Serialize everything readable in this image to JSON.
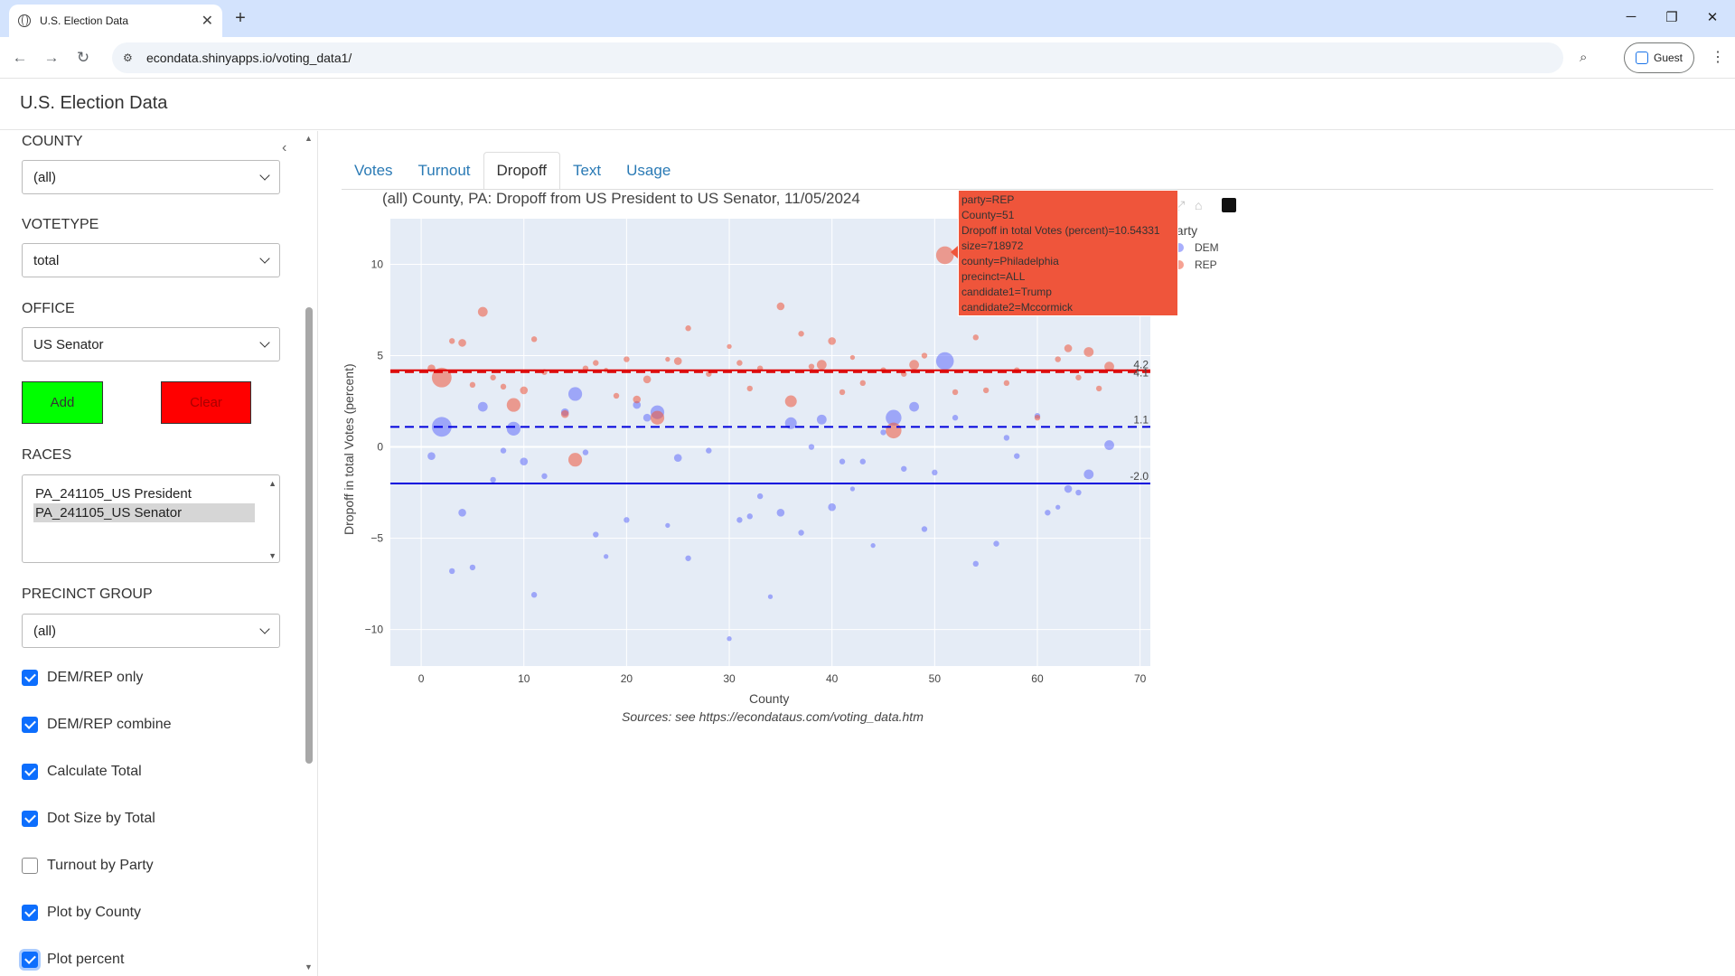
{
  "browser": {
    "tab_title": "U.S. Election Data",
    "url": "econdata.shinyapps.io/voting_data1/",
    "profile_label": "Guest"
  },
  "app": {
    "title": "U.S. Election Data"
  },
  "sidebar": {
    "county_label": "COUNTY",
    "county_value": "(all)",
    "votetype_label": "VOTETYPE",
    "votetype_value": "total",
    "office_label": "OFFICE",
    "office_value": "US Senator",
    "add_label": "Add",
    "clear_label": "Clear",
    "races_label": "RACES",
    "races": [
      "PA_241105_US President",
      "PA_241105_US Senator"
    ],
    "precinct_label": "PRECINCT GROUP",
    "precinct_value": "(all)",
    "checkboxes": [
      {
        "label": "DEM/REP only",
        "checked": true
      },
      {
        "label": "DEM/REP combine",
        "checked": true
      },
      {
        "label": "Calculate Total",
        "checked": true
      },
      {
        "label": "Dot Size by Total",
        "checked": true
      },
      {
        "label": "Turnout by Party",
        "checked": false
      },
      {
        "label": "Plot by County",
        "checked": true
      },
      {
        "label": "Plot percent",
        "checked": true
      }
    ]
  },
  "main": {
    "tabs": [
      "Votes",
      "Turnout",
      "Dropoff",
      "Text",
      "Usage"
    ],
    "active_tab": "Dropoff"
  },
  "colors": {
    "dem": "#636efa",
    "rep": "#ef553b",
    "add": "#00ff00",
    "clear": "#ff0000"
  },
  "chart_data": {
    "type": "scatter",
    "title": "(all) County, PA: Dropoff from US President to US Senator, 11/05/2024",
    "xlabel": "County",
    "ylabel": "Dropoff in total Votes (percent)",
    "source": "Sources: see https://econdataus.com/voting_data.htm",
    "xlim": [
      -3,
      71
    ],
    "ylim": [
      -12,
      12.5
    ],
    "xticks": [
      0,
      10,
      20,
      30,
      40,
      50,
      60,
      70
    ],
    "yticks": [
      -10,
      -5,
      0,
      5,
      10
    ],
    "legend_title": "party",
    "legend_position": "top-right",
    "series": [
      {
        "name": "DEM",
        "color": "#636efa",
        "points": [
          [
            1,
            -0.5,
            3
          ],
          [
            2,
            1.1,
            9
          ],
          [
            3,
            -6.8,
            2
          ],
          [
            4,
            -3.6,
            3
          ],
          [
            5,
            -6.6,
            2
          ],
          [
            6,
            2.2,
            4
          ],
          [
            7,
            -1.8,
            2
          ],
          [
            8,
            -0.2,
            2
          ],
          [
            9,
            1,
            6
          ],
          [
            10,
            -0.8,
            3
          ],
          [
            11,
            -8.1,
            2
          ],
          [
            12,
            -1.6,
            2
          ],
          [
            14,
            1.9,
            3
          ],
          [
            15,
            2.9,
            6
          ],
          [
            16,
            -0.3,
            2
          ],
          [
            17,
            -4.8,
            2
          ],
          [
            18,
            -6,
            1.5
          ],
          [
            20,
            -4,
            2
          ],
          [
            21,
            2.3,
            3
          ],
          [
            22,
            1.6,
            3
          ],
          [
            23,
            1.9,
            6
          ],
          [
            24,
            -4.3,
            1.5
          ],
          [
            25,
            -0.6,
            3
          ],
          [
            26,
            -6.1,
            2
          ],
          [
            28,
            -0.2,
            2
          ],
          [
            30,
            -10.5,
            1.5
          ],
          [
            31,
            -4,
            2
          ],
          [
            32,
            -3.8,
            2
          ],
          [
            33,
            -2.7,
            2
          ],
          [
            34,
            -8.2,
            1.5
          ],
          [
            35,
            -3.6,
            3
          ],
          [
            36,
            1.3,
            5
          ],
          [
            37,
            -4.7,
            2
          ],
          [
            38,
            0,
            2
          ],
          [
            39,
            1.5,
            4
          ],
          [
            40,
            -3.3,
            3
          ],
          [
            41,
            -0.8,
            2
          ],
          [
            42,
            -2.3,
            1.5
          ],
          [
            43,
            -0.8,
            2
          ],
          [
            44,
            -5.4,
            1.5
          ],
          [
            45,
            0.8,
            2
          ],
          [
            46,
            1.6,
            7
          ],
          [
            47,
            -1.2,
            2
          ],
          [
            48,
            2.2,
            4
          ],
          [
            49,
            -4.5,
            2
          ],
          [
            50,
            -1.4,
            2
          ],
          [
            51,
            4.7,
            8
          ],
          [
            52,
            1.6,
            2
          ],
          [
            54,
            -6.4,
            2
          ],
          [
            56,
            -5.3,
            2
          ],
          [
            57,
            0.5,
            2
          ],
          [
            58,
            -0.5,
            2
          ],
          [
            60,
            1.7,
            2
          ],
          [
            61,
            -3.6,
            2
          ],
          [
            62,
            -3.3,
            1.5
          ],
          [
            63,
            -2.3,
            3
          ],
          [
            64,
            -2.5,
            2
          ],
          [
            65,
            -1.5,
            4
          ],
          [
            67,
            0.1,
            4
          ]
        ]
      },
      {
        "name": "REP",
        "color": "#ef553b",
        "points": [
          [
            1,
            4.3,
            3
          ],
          [
            2,
            3.8,
            9
          ],
          [
            3,
            5.8,
            2
          ],
          [
            4,
            5.7,
            3
          ],
          [
            5,
            3.4,
            2
          ],
          [
            6,
            7.4,
            4
          ],
          [
            7,
            3.8,
            2
          ],
          [
            8,
            3.3,
            2
          ],
          [
            9,
            2.3,
            6
          ],
          [
            10,
            3.1,
            3
          ],
          [
            11,
            5.9,
            2
          ],
          [
            12,
            4.1,
            2
          ],
          [
            14,
            1.8,
            3
          ],
          [
            15,
            -0.7,
            6
          ],
          [
            16,
            4.3,
            2
          ],
          [
            17,
            4.6,
            2
          ],
          [
            18,
            4.2,
            1.5
          ],
          [
            19,
            2.8,
            2
          ],
          [
            20,
            4.8,
            2
          ],
          [
            21,
            2.6,
            3
          ],
          [
            22,
            3.7,
            3
          ],
          [
            23,
            1.6,
            6
          ],
          [
            24,
            4.8,
            1.5
          ],
          [
            25,
            4.7,
            3
          ],
          [
            26,
            6.5,
            2
          ],
          [
            28,
            4,
            2
          ],
          [
            30,
            5.5,
            1.5
          ],
          [
            31,
            4.6,
            2
          ],
          [
            32,
            3.2,
            2
          ],
          [
            33,
            4.3,
            2
          ],
          [
            35,
            7.7,
            3
          ],
          [
            36,
            2.5,
            5
          ],
          [
            37,
            6.2,
            2
          ],
          [
            38,
            4.4,
            2
          ],
          [
            39,
            4.5,
            4
          ],
          [
            40,
            5.8,
            3
          ],
          [
            41,
            3,
            2
          ],
          [
            42,
            4.9,
            1.5
          ],
          [
            43,
            3.5,
            2
          ],
          [
            45,
            4.2,
            2
          ],
          [
            46,
            0.9,
            7
          ],
          [
            47,
            4,
            2
          ],
          [
            48,
            4.5,
            4
          ],
          [
            49,
            5,
            2
          ],
          [
            51,
            10.5,
            8
          ],
          [
            52,
            3,
            2
          ],
          [
            54,
            6,
            2
          ],
          [
            55,
            3.1,
            2
          ],
          [
            57,
            3.5,
            2
          ],
          [
            58,
            4.2,
            2
          ],
          [
            60,
            1.6,
            2
          ],
          [
            62,
            4.8,
            2
          ],
          [
            63,
            5.4,
            3
          ],
          [
            64,
            3.8,
            2
          ],
          [
            65,
            5.2,
            4
          ],
          [
            66,
            3.2,
            2
          ],
          [
            67,
            4.4,
            4
          ]
        ]
      }
    ],
    "reference_lines": [
      {
        "party": "REP",
        "y": 4.2,
        "style": "solid",
        "label": "4.2"
      },
      {
        "party": "REP",
        "y": 4.1,
        "style": "dashed",
        "label": "4.1"
      },
      {
        "party": "DEM",
        "y": 1.1,
        "style": "dashed",
        "label": "1.1"
      },
      {
        "party": "DEM",
        "y": -2.0,
        "style": "solid",
        "label": "-2.0"
      }
    ],
    "hover": {
      "lines": [
        "party=REP",
        "County=51",
        "Dropoff in total Votes (percent)=10.54331",
        "size=718972",
        "county=Philadelphia",
        "precinct=ALL",
        "candidate1=Trump",
        "candidate2=Mccormick"
      ]
    }
  }
}
